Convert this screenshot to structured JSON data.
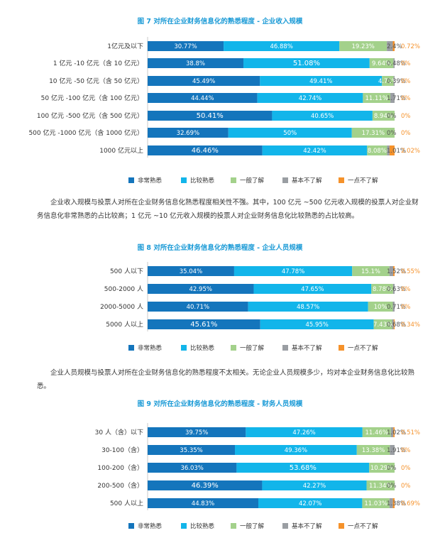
{
  "colors": [
    "#1475bc",
    "#12b5ea",
    "#a3d18b",
    "#9a9ea3",
    "#f5922b"
  ],
  "legend": [
    "非常熟悉",
    "比较熟悉",
    "一般了解",
    "基本不了解",
    "一点不了解"
  ],
  "figures": [
    {
      "title": "图 7 对所在企业财务信息化的熟悉程度 - 企业收入规模",
      "chart_data": {
        "type": "bar",
        "stacked": true,
        "orientation": "horizontal",
        "categories": [
          "1亿元及以下",
          "1 亿元 -10 亿元（含 10 亿元）",
          "10 亿元 -50 亿元（含 50 亿元）",
          "50 亿元 -100 亿元（含 100 亿元）",
          "100 亿元 -500 亿元（含 500 亿元）",
          "500 亿元 -1000 亿元（含 1000 亿元）",
          "1000 亿元以上"
        ],
        "series": [
          {
            "name": "非常熟悉",
            "values": [
              30.77,
              38.8,
              45.49,
              44.44,
              50.41,
              32.69,
              46.46
            ]
          },
          {
            "name": "比较熟悉",
            "values": [
              46.88,
              51.08,
              49.41,
              42.74,
              40.65,
              50,
              42.42
            ]
          },
          {
            "name": "一般了解",
            "values": [
              19.23,
              9.64,
              4.71,
              11.11,
              8.94,
              17.31,
              8.08
            ]
          },
          {
            "name": "基本不了解",
            "values": [
              2.4,
              0.48,
              0.39,
              1.71,
              0,
              0,
              1.01
            ]
          },
          {
            "name": "一点不了解",
            "values": [
              0.72,
              0,
              0,
              0,
              0,
              0,
              2.02
            ]
          }
        ],
        "labels": [
          [
            "30.77%",
            "46.88%",
            "19.23%",
            "2.4%",
            "0.72%"
          ],
          [
            "38.8%",
            "51.08%",
            "9.64%",
            "0.48%",
            "0%"
          ],
          [
            "45.49%",
            "49.41%",
            "4.71%",
            "0.39%",
            "0%"
          ],
          [
            "44.44%",
            "42.74%",
            "11.11%",
            "1.71%",
            "0%"
          ],
          [
            "50.41%",
            "40.65%",
            "8.94%",
            "0%",
            "0%"
          ],
          [
            "32.69%",
            "50%",
            "17.31%",
            "0%",
            "0%"
          ],
          [
            "46.46%",
            "42.42%",
            "8.08%",
            "1.01%",
            "2.02%"
          ]
        ],
        "xlim": [
          0,
          100
        ]
      }
    },
    {
      "title": "图 8 对所在企业财务信息化的熟悉程度 - 企业人员规模",
      "chart_data": {
        "type": "bar",
        "stacked": true,
        "orientation": "horizontal",
        "categories": [
          "500 人以下",
          "500-2000 人",
          "2000-5000 人",
          "5000 人以上"
        ],
        "series": [
          {
            "name": "非常熟悉",
            "values": [
              35.04,
              42.95,
              40.71,
              45.61
            ]
          },
          {
            "name": "比较熟悉",
            "values": [
              47.78,
              47.65,
              48.57,
              45.95
            ]
          },
          {
            "name": "一般了解",
            "values": [
              15.1,
              8.78,
              10,
              7.43
            ]
          },
          {
            "name": "基本不了解",
            "values": [
              1.52,
              0.63,
              0.71,
              0.68
            ]
          },
          {
            "name": "一点不了解",
            "values": [
              0.55,
              0,
              0,
              0.34
            ]
          }
        ],
        "labels": [
          [
            "35.04%",
            "47.78%",
            "15.1%",
            "1.52%",
            "0.55%"
          ],
          [
            "42.95%",
            "47.65%",
            "8.78%",
            "0.63%",
            "0%"
          ],
          [
            "40.71%",
            "48.57%",
            "10%",
            "0.71%",
            "0%"
          ],
          [
            "45.61%",
            "45.95%",
            "7.43%",
            "0.68%",
            "0.34%"
          ]
        ],
        "xlim": [
          0,
          100
        ]
      }
    },
    {
      "title": "图 9 对所在企业财务信息化的熟悉程度 - 财务人员规模",
      "chart_data": {
        "type": "bar",
        "stacked": true,
        "orientation": "horizontal",
        "categories": [
          "30 人（含）以下",
          "30-100（含）",
          "100-200（含）",
          "200-500（含）",
          "500 人以上"
        ],
        "series": [
          {
            "name": "非常熟悉",
            "values": [
              39.75,
              35.35,
              36.03,
              46.39,
              44.83
            ]
          },
          {
            "name": "比较熟悉",
            "values": [
              47.26,
              49.36,
              53.68,
              42.27,
              42.07
            ]
          },
          {
            "name": "一般了解",
            "values": [
              11.46,
              13.38,
              10.29,
              11.34,
              11.03
            ]
          },
          {
            "name": "基本不了解",
            "values": [
              1.02,
              1.91,
              0,
              0,
              1.38
            ]
          },
          {
            "name": "一点不了解",
            "values": [
              0.51,
              0,
              0,
              0,
              0.69
            ]
          }
        ],
        "labels": [
          [
            "39.75%",
            "47.26%",
            "11.46%",
            "1.02%",
            "0.51%"
          ],
          [
            "35.35%",
            "49.36%",
            "13.38%",
            "1.91%",
            "0%"
          ],
          [
            "36.03%",
            "53.68%",
            "10.29%",
            "0%",
            "0%"
          ],
          [
            "46.39%",
            "42.27%",
            "11.34%",
            "0%",
            "0%"
          ],
          [
            "44.83%",
            "42.07%",
            "11.03%",
            "1.38%",
            "0.69%"
          ]
        ],
        "xlim": [
          0,
          100
        ]
      }
    }
  ],
  "paragraphs": [
    "企业收入规模与投票人对所在企业财务信息化熟悉程度相关性不强。其中，100 亿元 ~500 亿元收入规模的投票人对企业财务信息化非常熟悉的占比较高；1 亿元 ~10 亿元收入规模的投票人对企业财务信息化比较熟悉的占比较高。",
    "企业人员规模与投票人对所在企业财务信息化的熟悉程度不太相关。无论企业人员规模多少，均对本企业财务信息化比较熟悉。"
  ]
}
